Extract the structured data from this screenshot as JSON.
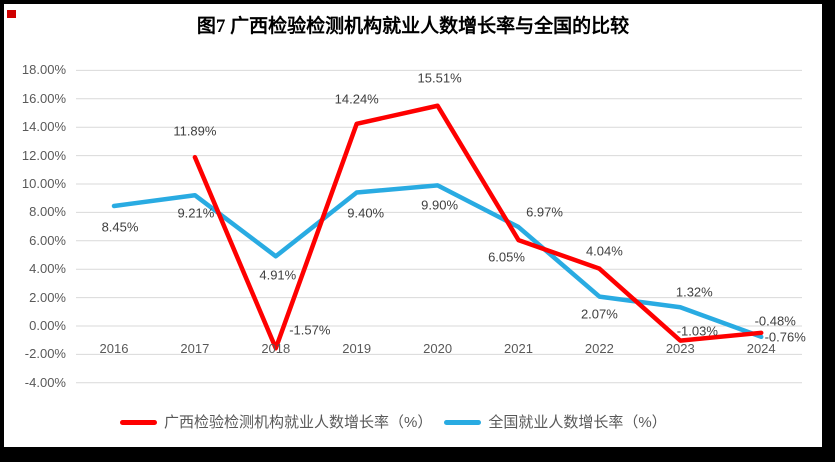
{
  "window": {
    "corner_mark_color": "#cf0000",
    "frame_color": "#000000"
  },
  "title": "图7 广西检验检测机构就业人数增长率与全国的比较",
  "chart_data": {
    "type": "line",
    "title": "图7 广西检验检测机构就业人数增长率与全国的比较",
    "categories": [
      "2016",
      "2017",
      "2018",
      "2019",
      "2020",
      "2021",
      "2022",
      "2023",
      "2024"
    ],
    "series": [
      {
        "name": "广西检验检测机构就业人数增长率（%）",
        "color": "#fe0000",
        "values": [
          null,
          11.89,
          -1.57,
          14.24,
          15.51,
          6.05,
          4.04,
          -1.03,
          -0.48
        ],
        "point_labels": [
          "",
          "11.89%",
          "-1.57%",
          "14.24%",
          "15.51%",
          "6.05%",
          "4.04%",
          "-1.03%",
          "-0.48%"
        ]
      },
      {
        "name": "全国就业人数增长率（%）",
        "color": "#29abe2",
        "values": [
          8.45,
          9.21,
          4.91,
          9.4,
          9.9,
          6.97,
          2.07,
          1.32,
          -0.76
        ],
        "point_labels": [
          "8.45%",
          "9.21%",
          "4.91%",
          "9.40%",
          "9.90%",
          "6.97%",
          "2.07%",
          "1.32%",
          "-0.76%"
        ]
      }
    ],
    "y_axis_ticks": [
      "18.00%",
      "16.00%",
      "14.00%",
      "12.00%",
      "10.00%",
      "8.00%",
      "6.00%",
      "4.00%",
      "2.00%",
      "0.00%",
      "-2.00%",
      "-4.00%"
    ],
    "ylim": [
      -4,
      18
    ],
    "grid": true,
    "gridline_color": "#d9d9d9",
    "axis_text_color": "#595959",
    "data_label_color": "#404040",
    "legend_position": "bottom"
  }
}
